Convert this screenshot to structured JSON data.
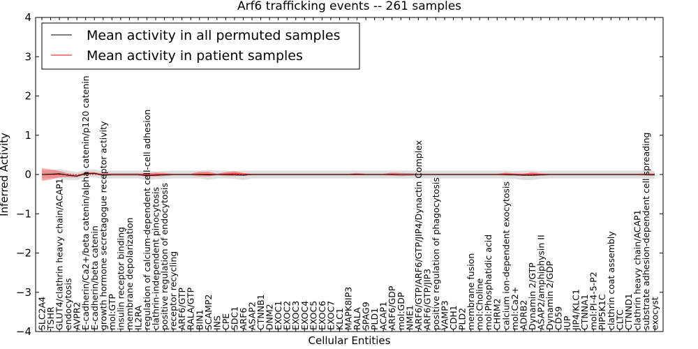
{
  "chart_data": {
    "type": "line",
    "title": "Arf6 trafficking events -- 261 samples",
    "xlabel": "Cellular Entities",
    "ylabel": "Inferred Activity",
    "ylim": [
      -4,
      4
    ],
    "yticks": [
      4,
      3,
      2,
      1,
      0,
      -1,
      -2,
      -3,
      -4
    ],
    "grid": false,
    "legend": {
      "placement": "top-left",
      "entries": [
        {
          "label": "Mean activity in all permuted samples",
          "color": "#000000"
        },
        {
          "label": "Mean activity in patient samples",
          "color": "#ff0000"
        }
      ]
    },
    "categories": [
      "SLC2A4",
      "TSHR",
      "GLUT4/clathrin heavy chain/ACAP1",
      "endocytosis",
      "AVPR2",
      "E-cadherin/Ca2+/beta catenin/alpha catenin/p120 catenin",
      "E-cadherin/beta catenin",
      "growth hormone secretagogue receptor activity",
      "mol:GTP",
      "insulin receptor binding",
      "membrane depolarization",
      "IL2RA",
      "regulation of calcium-dependent cell-cell adhesion",
      "clathrin-independent pinocytosis",
      "positive regulation of endocytosis",
      "receptor recycling",
      "ARF6/GTP",
      "RALA/GTP",
      "BIN1",
      "SCAMP2",
      "INS",
      "CPE",
      "SDC1",
      "ARF6",
      "ASAP2",
      "CTNNB1",
      "DNM2",
      "EXOC1",
      "EXOC2",
      "EXOC3",
      "EXOC4",
      "EXOC5",
      "EXOC6",
      "EXOC7",
      "KLC1",
      "MAPK8IP3",
      "RALA",
      "SPAG9",
      "PLD1",
      "ACAP1",
      "ARF6/GDP",
      "mol:GDP",
      "NME1",
      "ARF6/GTP/ARF6/GTP/JIP4/Dynactin Complex",
      "ARF6/GTP/JIP3",
      "positive regulation of phagocytosis",
      "VAMP3",
      "CDH1",
      "PLD2",
      "membrane fusion",
      "mol:Choline",
      "mol:Phosphatidic acid",
      "CHRM2",
      "calcium ion-dependent exocytosis",
      "mol:Ca2+",
      "ADRB2",
      "Dynamin 2/GTP",
      "ASAP2/amphiphysin II",
      "Dynamin 2/GDP",
      "CD59",
      "IUP",
      "JIP4/KLC1",
      "CTNNA1",
      "mol:PI-4-5-P2",
      "PIP5K1C",
      "clathrin coat assembly",
      "CLTC",
      "CTNND1",
      "clathrin heavy chain/ACAP1",
      "substrate adhesion-dependent cell spreading",
      "exocyst"
    ],
    "series": [
      {
        "name": "Mean activity in all permuted samples",
        "color": "#000000",
        "values": [
          0,
          0.01,
          0.02,
          -0.02,
          -0.04,
          0.02,
          0.03,
          -0.02,
          0,
          0,
          0,
          0,
          -0.03,
          -0.02,
          -0.01,
          0,
          0,
          0,
          0,
          -0.01,
          0,
          0,
          -0.01,
          -0.02,
          0,
          0,
          0,
          0,
          0,
          0,
          0,
          0,
          0,
          0,
          0,
          0,
          0,
          0,
          0,
          0,
          0,
          0,
          0,
          0,
          0,
          0,
          0,
          0,
          0,
          0,
          0,
          0,
          0,
          0,
          -0.01,
          -0.02,
          -0.02,
          -0.01,
          0,
          0,
          0,
          0,
          0,
          0,
          0,
          0,
          0,
          0,
          0,
          0,
          -0.01
        ],
        "band": [
          0.1,
          0.1,
          0.12,
          0.12,
          0.1,
          0.1,
          0.1,
          0.1,
          0.1,
          0.1,
          0.1,
          0.1,
          0.12,
          0.1,
          0.1,
          0.1,
          0.1,
          0.1,
          0.1,
          0.12,
          0.1,
          0.1,
          0.1,
          0.12,
          0.1,
          0.1,
          0.1,
          0.1,
          0.1,
          0.1,
          0.1,
          0.1,
          0.1,
          0.1,
          0.1,
          0.1,
          0.1,
          0.1,
          0.1,
          0.1,
          0.1,
          0.1,
          0.1,
          0.1,
          0.1,
          0.1,
          0.1,
          0.1,
          0.1,
          0.1,
          0.1,
          0.1,
          0.1,
          0.1,
          0.1,
          0.12,
          0.12,
          0.1,
          0.1,
          0.1,
          0.1,
          0.1,
          0.1,
          0.1,
          0.1,
          0.1,
          0.1,
          0.1,
          0.1,
          0.1,
          0.1
        ]
      },
      {
        "name": "Mean activity in patient samples",
        "color": "#ff0000",
        "values": [
          0,
          0,
          0.01,
          -0.02,
          -0.04,
          0.03,
          0.03,
          -0.01,
          0,
          0,
          0,
          0,
          -0.01,
          0,
          0,
          0,
          0,
          0,
          0.01,
          0.01,
          0,
          0.01,
          0.02,
          0.01,
          0,
          0,
          0,
          0,
          0,
          0,
          0,
          0,
          0,
          0,
          0,
          0,
          0.01,
          0,
          0,
          0,
          0.01,
          0,
          0,
          0,
          0,
          0,
          0,
          0,
          0,
          0,
          0,
          0,
          0,
          0.01,
          0,
          0,
          0.01,
          0,
          0,
          0,
          0,
          0,
          0,
          0,
          0,
          0,
          0,
          0,
          0,
          0,
          0
        ],
        "band": [
          0.16,
          0.13,
          0.08,
          0.05,
          0.03,
          0.03,
          0.03,
          0.03,
          0.03,
          0.03,
          0.03,
          0.03,
          0.04,
          0.05,
          0.04,
          0.02,
          0.02,
          0.02,
          0.06,
          0.06,
          0.02,
          0.05,
          0.06,
          0.03,
          0.02,
          0.02,
          0.02,
          0.02,
          0.02,
          0.02,
          0.02,
          0.02,
          0.02,
          0.02,
          0.02,
          0.02,
          0.03,
          0.02,
          0.02,
          0.02,
          0.04,
          0.04,
          0.03,
          0.02,
          0.02,
          0.02,
          0.02,
          0.02,
          0.02,
          0.02,
          0.02,
          0.02,
          0.02,
          0.04,
          0.03,
          0.02,
          0.05,
          0.03,
          0.02,
          0.02,
          0.02,
          0.02,
          0.02,
          0.02,
          0.02,
          0.02,
          0.02,
          0.02,
          0.02,
          0.03,
          0.03
        ]
      }
    ]
  }
}
